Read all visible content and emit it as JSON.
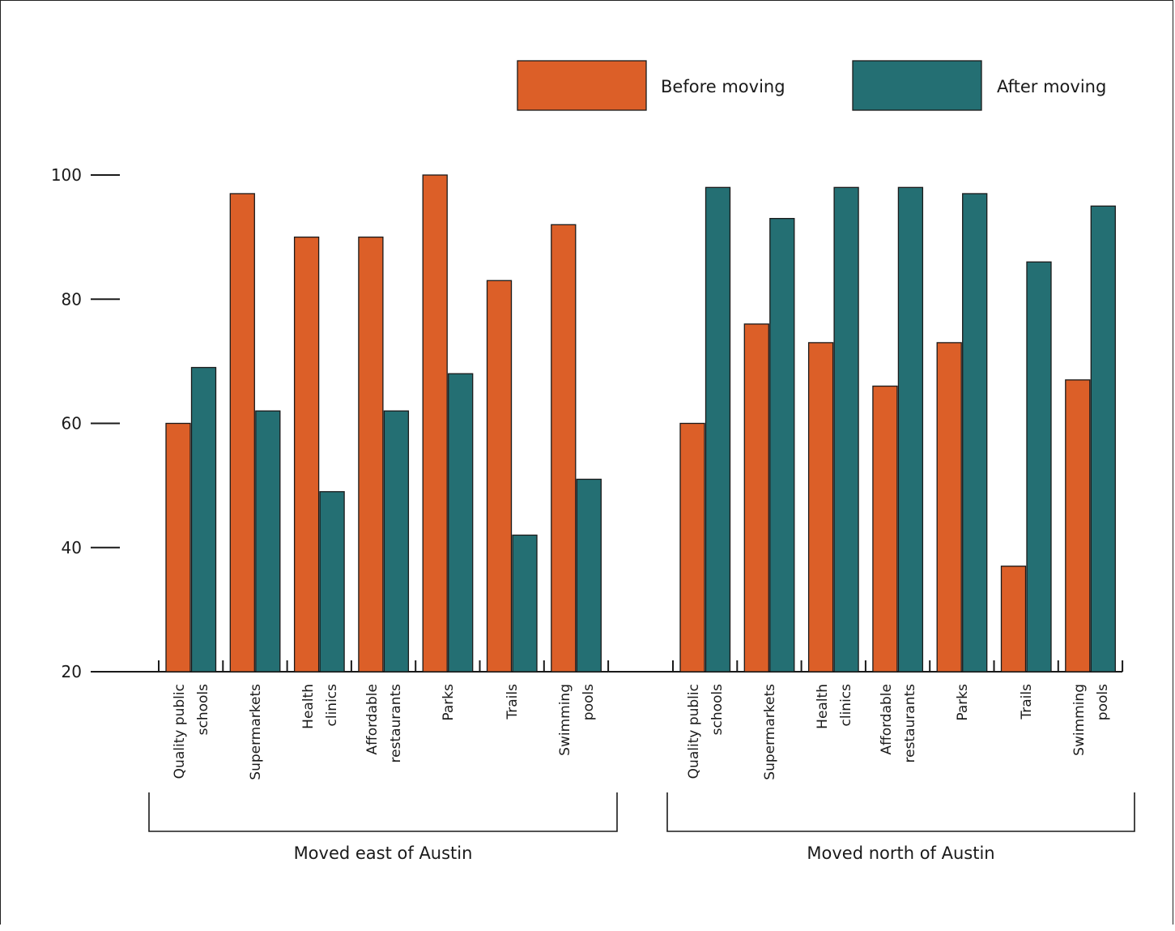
{
  "colors": {
    "before": "#dc5f28",
    "after": "#246f73",
    "stroke": "#1a1a1a"
  },
  "chart_data": {
    "type": "bar",
    "title": "",
    "xlabel": "",
    "ylabel": "",
    "ylim": [
      20,
      100
    ],
    "yticks": [
      20,
      40,
      60,
      80,
      100
    ],
    "yticks_labels": [
      "20",
      "40",
      "60",
      "80",
      "100"
    ],
    "grid": false,
    "legend_position": "top-right",
    "legend": [
      {
        "key": "before",
        "label": "Before moving"
      },
      {
        "key": "after",
        "label": "After moving"
      }
    ],
    "groups": [
      {
        "label": "Moved east of Austin",
        "categories": [
          [
            "Quality public",
            "schools"
          ],
          [
            "Supermarkets"
          ],
          [
            "Health",
            "clinics"
          ],
          [
            "Affordable",
            "restaurants"
          ],
          [
            "Parks"
          ],
          [
            "Trails"
          ],
          [
            "Swimming",
            "pools"
          ]
        ],
        "series": [
          {
            "name": "Before moving",
            "key": "before",
            "values": [
              60,
              97,
              90,
              90,
              100,
              83,
              92
            ]
          },
          {
            "name": "After moving",
            "key": "after",
            "values": [
              69,
              62,
              49,
              62,
              68,
              42,
              51
            ]
          }
        ]
      },
      {
        "label": "Moved north of Austin",
        "categories": [
          [
            "Quality public",
            "schools"
          ],
          [
            "Supermarkets"
          ],
          [
            "Health",
            "clinics"
          ],
          [
            "Affordable",
            "restaurants"
          ],
          [
            "Parks"
          ],
          [
            "Trails"
          ],
          [
            "Swimming",
            "pools"
          ]
        ],
        "series": [
          {
            "name": "Before moving",
            "key": "before",
            "values": [
              60,
              76,
              73,
              66,
              73,
              37,
              67
            ]
          },
          {
            "name": "After moving",
            "key": "after",
            "values": [
              98,
              93,
              98,
              98,
              97,
              86,
              95
            ]
          }
        ]
      }
    ]
  }
}
